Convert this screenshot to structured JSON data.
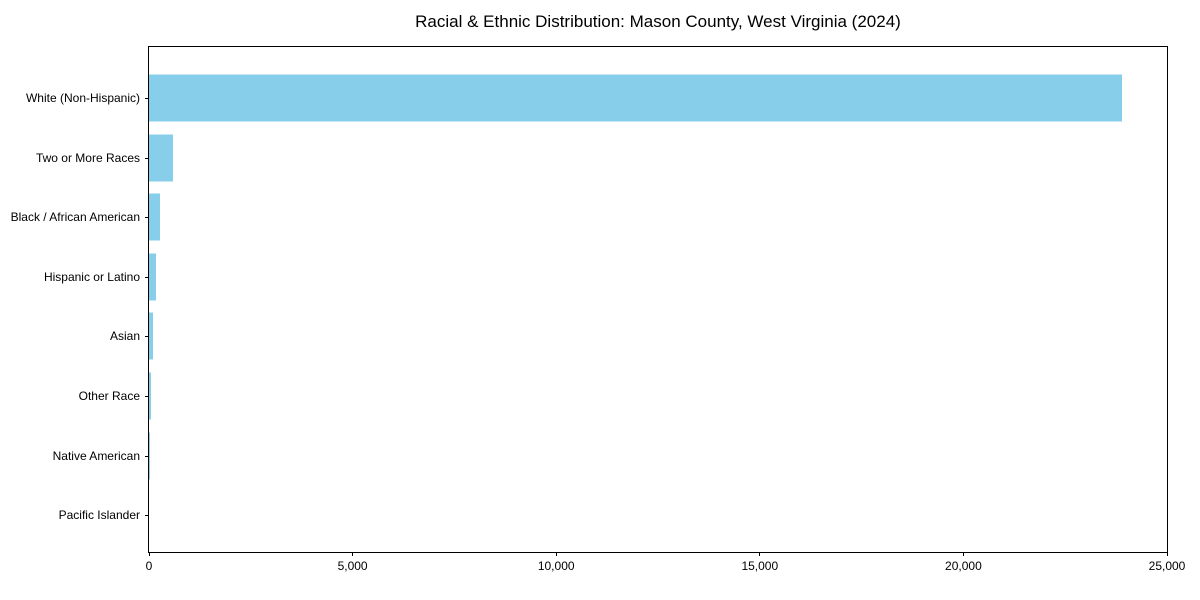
{
  "chart_data": {
    "type": "bar",
    "orientation": "horizontal",
    "title": "Racial & Ethnic Distribution: Mason County, West Virginia (2024)",
    "categories": [
      "White (Non-Hispanic)",
      "Two or More Races",
      "Black / African American",
      "Hispanic or Latino",
      "Asian",
      "Other Race",
      "Native American",
      "Pacific Islander"
    ],
    "values": [
      23900,
      600,
      270,
      180,
      100,
      55,
      10,
      0
    ],
    "xlabel": "",
    "ylabel": "",
    "xlim": [
      0,
      25000
    ],
    "x_ticks": [
      0,
      5000,
      10000,
      15000,
      20000,
      25000
    ],
    "x_tick_labels": [
      "0",
      "5,000",
      "10,000",
      "15,000",
      "20,000",
      "25,000"
    ],
    "bar_color": "#87CEEB",
    "frame_color": "#000000",
    "grid": false,
    "legend_position": "none"
  }
}
